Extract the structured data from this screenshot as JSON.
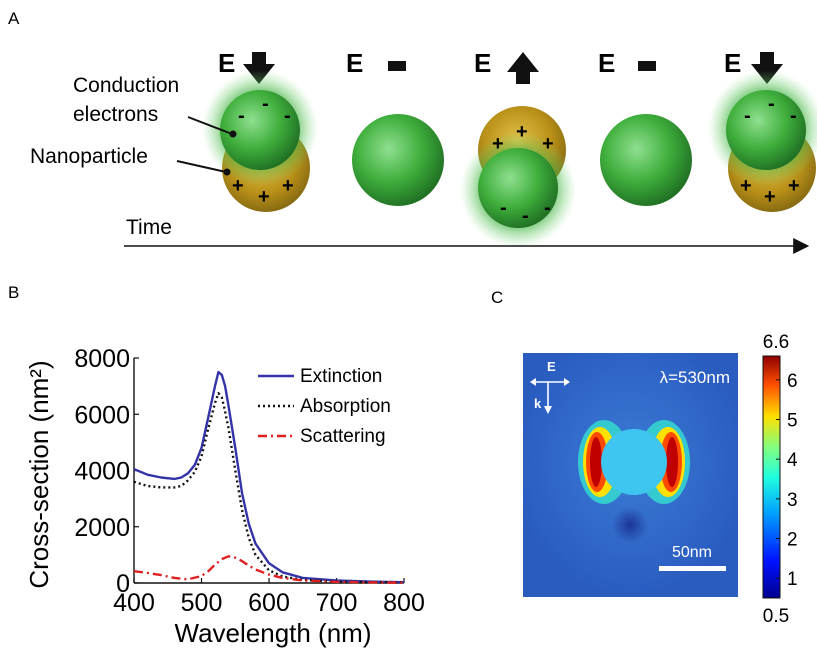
{
  "panel_a": {
    "panel_label": "A",
    "field_symbol": "E",
    "field_states": [
      "down",
      "zero",
      "up",
      "zero",
      "down"
    ],
    "label_conduction_line1": "Conduction",
    "label_conduction_line2": "electrons",
    "label_nanoparticle": "Nanoparticle",
    "time_label": "Time",
    "plus_sign": "+",
    "minus_sign": "-"
  },
  "panel_b": {
    "panel_label": "B"
  },
  "panel_c": {
    "panel_label": "C",
    "direction_e": "E",
    "direction_k": "k",
    "wavelength_label": "λ=530nm",
    "scale_bar_label": "50nm",
    "colorbar_max": "6.6",
    "colorbar_min": "0.5",
    "colorbar_ticks": [
      "6",
      "5",
      "4",
      "3",
      "2",
      "1"
    ],
    "colorbar_tick_values": [
      6,
      5,
      4,
      3,
      2,
      1
    ],
    "colorbar_range": [
      0.5,
      6.6
    ]
  },
  "chart_data": {
    "type": "line",
    "xlabel": "Wavelength (nm)",
    "ylabel": "Cross-section (nm²)",
    "xlim": [
      400,
      800
    ],
    "ylim": [
      0,
      8000
    ],
    "xticks": [
      "400",
      "500",
      "600",
      "700",
      "800"
    ],
    "yticks": [
      "0",
      "2000",
      "4000",
      "6000",
      "8000"
    ],
    "legend_position": "top-right",
    "series": [
      {
        "name": "Extinction",
        "style": "solid",
        "color": "#3434a8",
        "x": [
          400,
          420,
          440,
          460,
          470,
          480,
          490,
          500,
          510,
          520,
          525,
          530,
          535,
          540,
          550,
          560,
          570,
          580,
          600,
          620,
          650,
          700,
          750,
          800
        ],
        "y": [
          4050,
          3850,
          3750,
          3700,
          3750,
          3900,
          4200,
          4800,
          5900,
          7000,
          7500,
          7400,
          7000,
          6300,
          4800,
          3200,
          2100,
          1400,
          700,
          380,
          180,
          90,
          50,
          30
        ]
      },
      {
        "name": "Absorption",
        "style": "dotted",
        "color": "#111111",
        "x": [
          400,
          420,
          440,
          460,
          470,
          480,
          490,
          500,
          510,
          520,
          525,
          530,
          535,
          540,
          550,
          560,
          570,
          580,
          600,
          620,
          650,
          700,
          750,
          800
        ],
        "y": [
          3600,
          3450,
          3400,
          3400,
          3450,
          3650,
          3950,
          4500,
          5500,
          6400,
          6750,
          6600,
          6100,
          5500,
          4000,
          2600,
          1600,
          1000,
          450,
          230,
          110,
          50,
          30,
          20
        ]
      },
      {
        "name": "Scattering",
        "style": "dashdot",
        "color": "#e02020",
        "x": [
          400,
          420,
          440,
          460,
          480,
          500,
          510,
          520,
          530,
          540,
          550,
          560,
          570,
          580,
          600,
          620,
          650,
          700,
          750,
          800
        ],
        "y": [
          420,
          360,
          280,
          180,
          130,
          250,
          420,
          650,
          850,
          950,
          900,
          780,
          620,
          480,
          300,
          180,
          90,
          40,
          20,
          10
        ]
      }
    ]
  }
}
